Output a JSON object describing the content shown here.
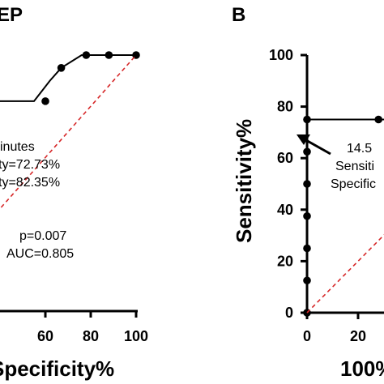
{
  "chart_data": [
    {
      "type": "line",
      "panel_label": "",
      "title": "EP",
      "xlabel": "Specificity%",
      "ylabel": "",
      "xlim": [
        0,
        100
      ],
      "ylim": [
        0,
        100
      ],
      "x_ticks": [
        {
          "value": 60,
          "label": "60"
        },
        {
          "value": 80,
          "label": "80"
        },
        {
          "value": 100,
          "label": "100"
        }
      ],
      "series": [
        {
          "role": "roc",
          "color": "#000000",
          "points": [
            {
              "x": 0,
              "y": 82
            },
            {
              "x": 35,
              "y": 82
            },
            {
              "x": 55,
              "y": 82
            },
            {
              "x": 62,
              "y": 90
            },
            {
              "x": 67,
              "y": 95
            },
            {
              "x": 76,
              "y": 100
            },
            {
              "x": 81,
              "y": 100
            },
            {
              "x": 87,
              "y": 100
            },
            {
              "x": 100,
              "y": 100
            }
          ],
          "markers": [
            {
              "x": 60,
              "y": 82
            },
            {
              "x": 67,
              "y": 95
            },
            {
              "x": 78,
              "y": 100
            },
            {
              "x": 88,
              "y": 100
            },
            {
              "x": 100,
              "y": 100
            }
          ]
        },
        {
          "role": "reference",
          "color": "#d62728",
          "points": [
            {
              "x": 0,
              "y": 0
            },
            {
              "x": 100,
              "y": 100
            }
          ]
        }
      ],
      "annotations": [
        {
          "text": "inutes"
        },
        {
          "text": "ty=72.73%"
        },
        {
          "text": "ty=82.35%"
        },
        {
          "text": "p=0.007"
        },
        {
          "text": "AUC=0.805"
        }
      ],
      "grid": false
    },
    {
      "type": "line",
      "panel_label": "B",
      "title": "",
      "xlabel": "100%",
      "ylabel": "Sensitivity%",
      "xlim": [
        0,
        100
      ],
      "ylim": [
        0,
        100
      ],
      "x_ticks": [
        {
          "value": 0,
          "label": "0"
        },
        {
          "value": 20,
          "label": "20"
        }
      ],
      "y_ticks": [
        {
          "value": 0,
          "label": "0"
        },
        {
          "value": 20,
          "label": "20"
        },
        {
          "value": 40,
          "label": "40"
        },
        {
          "value": 60,
          "label": "60"
        },
        {
          "value": 80,
          "label": "80"
        },
        {
          "value": 100,
          "label": "100"
        }
      ],
      "series": [
        {
          "role": "roc",
          "color": "#000000",
          "points": [
            {
              "x": 0,
              "y": 0
            },
            {
              "x": 0,
              "y": 75
            },
            {
              "x": 100,
              "y": 75
            }
          ],
          "markers": [
            {
              "x": 0,
              "y": 0
            },
            {
              "x": 0,
              "y": 12.5
            },
            {
              "x": 0,
              "y": 25
            },
            {
              "x": 0,
              "y": 37.5
            },
            {
              "x": 0,
              "y": 50
            },
            {
              "x": 0,
              "y": 62.5
            },
            {
              "x": 0,
              "y": 75
            },
            {
              "x": 28,
              "y": 75
            }
          ]
        },
        {
          "role": "reference",
          "color": "#d62728",
          "points": [
            {
              "x": 0,
              "y": 0
            },
            {
              "x": 100,
              "y": 100
            }
          ]
        }
      ],
      "annotations": [
        {
          "text": "14.5"
        },
        {
          "text": "Sensiti"
        },
        {
          "text": "Specific"
        }
      ],
      "grid": false
    }
  ]
}
